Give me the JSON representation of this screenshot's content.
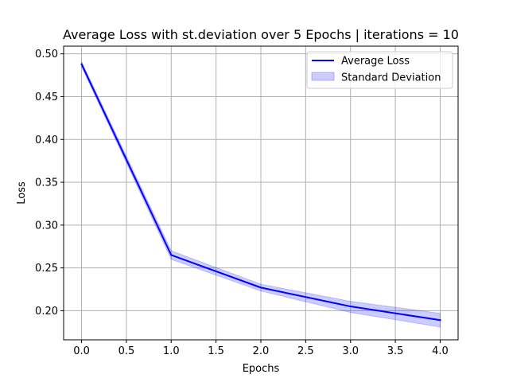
{
  "chart_data": {
    "type": "line",
    "title": "Average Loss with st.deviation over 5 Epochs | iterations = 10",
    "xlabel": "Epochs",
    "ylabel": "Loss",
    "xlim": [
      -0.2,
      4.2
    ],
    "ylim": [
      0.166,
      0.509
    ],
    "xticks": [
      0.0,
      0.5,
      1.0,
      1.5,
      2.0,
      2.5,
      3.0,
      3.5,
      4.0
    ],
    "xtick_labels": [
      "0.0",
      "0.5",
      "1.0",
      "1.5",
      "2.0",
      "2.5",
      "3.0",
      "3.5",
      "4.0"
    ],
    "yticks": [
      0.2,
      0.25,
      0.3,
      0.35,
      0.4,
      0.45,
      0.5
    ],
    "ytick_labels": [
      "0.20",
      "0.25",
      "0.30",
      "0.35",
      "0.40",
      "0.45",
      "0.50"
    ],
    "grid": true,
    "legend_position": "top-right",
    "x": [
      0,
      1,
      2,
      3,
      4
    ],
    "series": [
      {
        "name": "Average Loss",
        "kind": "line",
        "color": "#0000ff",
        "values": [
          0.488,
          0.265,
          0.227,
          0.205,
          0.189
        ]
      },
      {
        "name": "Standard Deviation",
        "kind": "band",
        "color": "#0000ff",
        "lower": [
          0.485,
          0.26,
          0.223,
          0.198,
          0.181
        ],
        "upper": [
          0.491,
          0.27,
          0.231,
          0.211,
          0.197
        ]
      }
    ]
  }
}
